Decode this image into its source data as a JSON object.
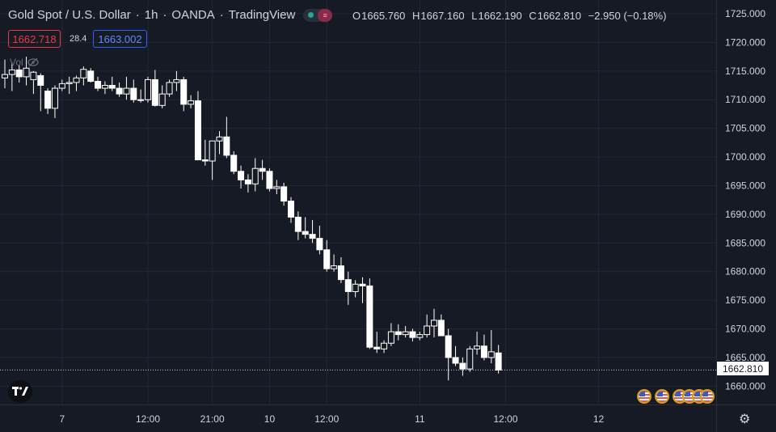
{
  "header": {
    "symbol": "Gold Spot / U.S. Dollar",
    "interval": "1h",
    "broker": "OANDA",
    "platform": "TradingView",
    "ohlc": {
      "o_label": "O",
      "o": "1665.760",
      "h_label": "H",
      "h": "1667.160",
      "l_label": "L",
      "l": "1662.190",
      "c_label": "C",
      "c": "1662.810",
      "change": "−2.950 (−0.18%)"
    }
  },
  "trade": {
    "sell": "1662.718",
    "spread": "28.4",
    "buy": "1663.002"
  },
  "volume_label": "Vol",
  "last_price": "1662.810",
  "colors": {
    "background": "#161a25",
    "grid": "#232734",
    "candle": "#ffffff",
    "text": "#d1d4dc",
    "sell": "#f23645",
    "buy": "#2962ff"
  },
  "icons": {
    "logo": "tradingview-logo",
    "settings": "gear-icon",
    "events": "us-flag-icon"
  },
  "chart_data": {
    "type": "candlestick",
    "title": "Gold Spot / U.S. Dollar",
    "y_ticks": [
      "1725.000",
      "1720.000",
      "1715.000",
      "1710.000",
      "1705.000",
      "1700.000",
      "1695.000",
      "1690.000",
      "1685.000",
      "1680.000",
      "1675.000",
      "1670.000",
      "1665.000",
      "1660.000"
    ],
    "ylim": [
      1656.8,
      1727.4
    ],
    "x_ticks": [
      {
        "label": "7",
        "index": 8
      },
      {
        "label": "12:00",
        "index": 20
      },
      {
        "label": "21:00",
        "index": 29
      },
      {
        "label": "10",
        "index": 37
      },
      {
        "label": "12:00",
        "index": 45
      },
      {
        "label": "11",
        "index": 58
      },
      {
        "label": "12:00",
        "index": 70
      },
      {
        "label": "12",
        "index": 83
      }
    ],
    "candles": [
      [
        1713.8,
        1717.0,
        1712.0,
        1714.4
      ],
      [
        1714.4,
        1716.5,
        1711.5,
        1715.2
      ],
      [
        1715.2,
        1716.0,
        1713.0,
        1714.0
      ],
      [
        1714.0,
        1717.5,
        1712.5,
        1715.5
      ],
      [
        1713.5,
        1715.0,
        1711.0,
        1714.8
      ],
      [
        1714.2,
        1714.6,
        1708.0,
        1712.5
      ],
      [
        1711.5,
        1712.0,
        1707.5,
        1708.5
      ],
      [
        1708.5,
        1712.5,
        1706.8,
        1712.0
      ],
      [
        1712.0,
        1713.5,
        1711.5,
        1712.8
      ],
      [
        1712.8,
        1714.0,
        1711.0,
        1713.0
      ],
      [
        1713.0,
        1714.2,
        1711.5,
        1713.8
      ],
      [
        1713.8,
        1715.8,
        1712.5,
        1715.3
      ],
      [
        1715.0,
        1715.5,
        1713.0,
        1713.2
      ],
      [
        1713.2,
        1714.0,
        1711.5,
        1712.0
      ],
      [
        1712.0,
        1713.2,
        1711.0,
        1712.5
      ],
      [
        1712.5,
        1714.0,
        1711.5,
        1712.0
      ],
      [
        1712.0,
        1713.0,
        1710.5,
        1711.0
      ],
      [
        1711.0,
        1714.0,
        1710.0,
        1712.0
      ],
      [
        1712.0,
        1713.5,
        1709.5,
        1710.0
      ],
      [
        1710.0,
        1711.8,
        1709.5,
        1710.0
      ],
      [
        1710.0,
        1714.0,
        1709.5,
        1713.5
      ],
      [
        1713.5,
        1715.2,
        1708.8,
        1709.0
      ],
      [
        1709.0,
        1712.5,
        1708.5,
        1711.0
      ],
      [
        1711.0,
        1713.5,
        1710.5,
        1713.0
      ],
      [
        1713.0,
        1715.0,
        1711.5,
        1713.5
      ],
      [
        1713.5,
        1714.0,
        1708.0,
        1709.2
      ],
      [
        1709.2,
        1710.8,
        1708.5,
        1709.8
      ],
      [
        1709.8,
        1711.5,
        1700.0,
        1699.5
      ],
      [
        1699.5,
        1703.0,
        1698.5,
        1699.3
      ],
      [
        1699.3,
        1702.5,
        1696.0,
        1702.8
      ],
      [
        1702.8,
        1704.5,
        1700.5,
        1703.5
      ],
      [
        1703.5,
        1707.0,
        1699.8,
        1700.3
      ],
      [
        1700.3,
        1701.0,
        1697.0,
        1697.5
      ],
      [
        1697.5,
        1698.5,
        1694.5,
        1696.0
      ],
      [
        1696.0,
        1697.0,
        1693.8,
        1695.3
      ],
      [
        1695.3,
        1699.8,
        1694.0,
        1698.0
      ],
      [
        1698.0,
        1699.5,
        1696.0,
        1697.5
      ],
      [
        1697.5,
        1698.0,
        1694.0,
        1694.5
      ],
      [
        1694.5,
        1696.0,
        1693.5,
        1694.8
      ],
      [
        1694.8,
        1695.5,
        1691.5,
        1692.3
      ],
      [
        1692.3,
        1693.0,
        1688.5,
        1689.5
      ],
      [
        1689.5,
        1690.5,
        1685.5,
        1687.0
      ],
      [
        1687.0,
        1689.5,
        1685.8,
        1686.5
      ],
      [
        1686.5,
        1689.0,
        1685.0,
        1685.8
      ],
      [
        1685.8,
        1688.0,
        1683.0,
        1683.8
      ],
      [
        1683.8,
        1685.5,
        1680.0,
        1680.5
      ],
      [
        1680.5,
        1683.0,
        1680.0,
        1681.0
      ],
      [
        1681.0,
        1682.5,
        1678.0,
        1678.6
      ],
      [
        1678.6,
        1680.0,
        1674.2,
        1676.5
      ],
      [
        1676.5,
        1678.5,
        1675.5,
        1677.8
      ],
      [
        1677.8,
        1679.0,
        1674.5,
        1677.5
      ],
      [
        1677.5,
        1678.8,
        1666.5,
        1666.8
      ],
      [
        1666.8,
        1669.5,
        1665.8,
        1666.5
      ],
      [
        1666.5,
        1668.0,
        1665.8,
        1667.5
      ],
      [
        1667.5,
        1671.0,
        1667.0,
        1669.5
      ],
      [
        1669.5,
        1670.8,
        1668.0,
        1669.0
      ],
      [
        1669.0,
        1670.5,
        1668.5,
        1669.5
      ],
      [
        1669.5,
        1670.0,
        1667.8,
        1668.5
      ],
      [
        1668.5,
        1669.5,
        1668.0,
        1669.0
      ],
      [
        1669.0,
        1672.5,
        1668.5,
        1670.5
      ],
      [
        1670.5,
        1673.5,
        1668.5,
        1671.5
      ],
      [
        1671.5,
        1672.5,
        1669.0,
        1668.8
      ],
      [
        1668.8,
        1670.0,
        1661.0,
        1665.0
      ],
      [
        1665.0,
        1667.0,
        1663.5,
        1664.0
      ],
      [
        1664.0,
        1665.0,
        1661.8,
        1663.0
      ],
      [
        1663.0,
        1667.0,
        1662.5,
        1666.5
      ],
      [
        1666.5,
        1669.5,
        1665.5,
        1667.0
      ],
      [
        1667.0,
        1669.0,
        1664.5,
        1665.0
      ],
      [
        1665.0,
        1669.8,
        1664.0,
        1666.0
      ],
      [
        1665.8,
        1667.2,
        1662.2,
        1662.8
      ]
    ]
  }
}
